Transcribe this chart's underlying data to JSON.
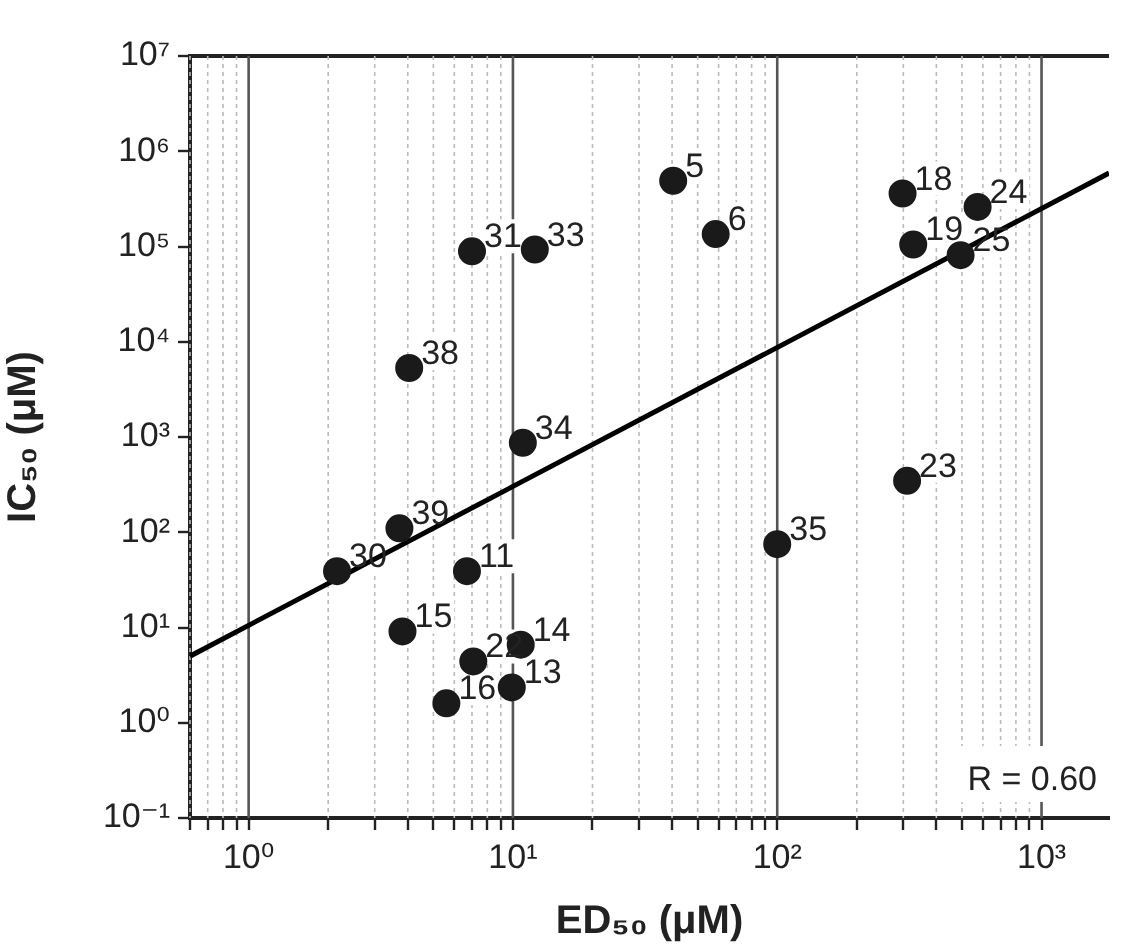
{
  "chart_data": {
    "type": "scatter",
    "xlabel": "ED₅₀ (μM)",
    "ylabel": "IC₅₀ (μM)",
    "log": "xy",
    "grid": "x",
    "legend": false,
    "marker": "circle",
    "xlim": [
      0.6,
      1800
    ],
    "ylim": [
      0.1,
      10000000
    ],
    "xticks": [
      {
        "value": 0.6,
        "label": null
      },
      {
        "value": 0.7,
        "label": null
      },
      {
        "value": 0.8,
        "label": null
      },
      {
        "value": 0.9,
        "label": null
      },
      {
        "value": 1,
        "label": "10⁰"
      },
      {
        "value": 2,
        "label": null
      },
      {
        "value": 3,
        "label": null
      },
      {
        "value": 4,
        "label": null
      },
      {
        "value": 5,
        "label": null
      },
      {
        "value": 6,
        "label": null
      },
      {
        "value": 7,
        "label": null
      },
      {
        "value": 8,
        "label": null
      },
      {
        "value": 9,
        "label": null
      },
      {
        "value": 10,
        "label": "10¹"
      },
      {
        "value": 20,
        "label": null
      },
      {
        "value": 30,
        "label": null
      },
      {
        "value": 40,
        "label": null
      },
      {
        "value": 50,
        "label": null
      },
      {
        "value": 60,
        "label": null
      },
      {
        "value": 70,
        "label": null
      },
      {
        "value": 80,
        "label": null
      },
      {
        "value": 90,
        "label": null
      },
      {
        "value": 100,
        "label": "10²"
      },
      {
        "value": 200,
        "label": null
      },
      {
        "value": 300,
        "label": null
      },
      {
        "value": 400,
        "label": null
      },
      {
        "value": 500,
        "label": null
      },
      {
        "value": 600,
        "label": null
      },
      {
        "value": 700,
        "label": null
      },
      {
        "value": 800,
        "label": null
      },
      {
        "value": 900,
        "label": null
      },
      {
        "value": 1000,
        "label": "10³"
      }
    ],
    "yticks": [
      {
        "value": 0.1,
        "label": "10⁻¹"
      },
      {
        "value": 1,
        "label": "10⁰"
      },
      {
        "value": 10,
        "label": "10¹"
      },
      {
        "value": 100,
        "label": "10²"
      },
      {
        "value": 1000,
        "label": "10³"
      },
      {
        "value": 10000,
        "label": "10⁴"
      },
      {
        "value": 100000,
        "label": "10⁵"
      },
      {
        "value": 1000000,
        "label": "10⁶"
      },
      {
        "value": 10000000,
        "label": "10⁷"
      }
    ],
    "series": [
      {
        "color": "#1a1a1a",
        "x": [
          7.0,
          12.1,
          4.05,
          10.9,
          40.4,
          58.5,
          298,
          573,
          327,
          494,
          310,
          2.16,
          3.72,
          6.7,
          3.82,
          7.08,
          10.7,
          5.6,
          9.9,
          100
        ],
        "values": [
          89000,
          93000,
          5300,
          870,
          490000,
          135000,
          360000,
          260000,
          105000,
          81000,
          347,
          39,
          110,
          39,
          9.1,
          4.4,
          6.6,
          1.6,
          2.35,
          75
        ]
      },
      {
        "type": "line",
        "color": "#000000",
        "marker": "none",
        "x": [
          0.6,
          1800
        ],
        "values": [
          5,
          590000
        ]
      }
    ],
    "annotations": [
      {
        "text": "31",
        "x": 7.0,
        "y": 89000
      },
      {
        "text": "33",
        "x": 12.1,
        "y": 93000
      },
      {
        "text": "38",
        "x": 4.05,
        "y": 5300
      },
      {
        "text": "34",
        "x": 10.9,
        "y": 870
      },
      {
        "text": "5",
        "x": 40.4,
        "y": 490000
      },
      {
        "text": "6",
        "x": 58.5,
        "y": 135000
      },
      {
        "text": "18",
        "x": 298,
        "y": 360000
      },
      {
        "text": "24",
        "x": 573,
        "y": 260000
      },
      {
        "text": "19",
        "x": 327,
        "y": 105000
      },
      {
        "text": "25",
        "x": 494,
        "y": 81000
      },
      {
        "text": "23",
        "x": 310,
        "y": 347
      },
      {
        "text": "30",
        "x": 2.16,
        "y": 39
      },
      {
        "text": "39",
        "x": 3.72,
        "y": 110
      },
      {
        "text": "11",
        "x": 6.7,
        "y": 39
      },
      {
        "text": "15",
        "x": 3.82,
        "y": 9.1
      },
      {
        "text": "22",
        "x": 7.08,
        "y": 4.4
      },
      {
        "text": "14",
        "x": 10.7,
        "y": 6.6
      },
      {
        "text": "16",
        "x": 5.6,
        "y": 1.6
      },
      {
        "text": "13",
        "x": 9.9,
        "y": 2.35
      },
      {
        "text": "35",
        "x": 100,
        "y": 75
      },
      "R = 0.60"
    ]
  }
}
